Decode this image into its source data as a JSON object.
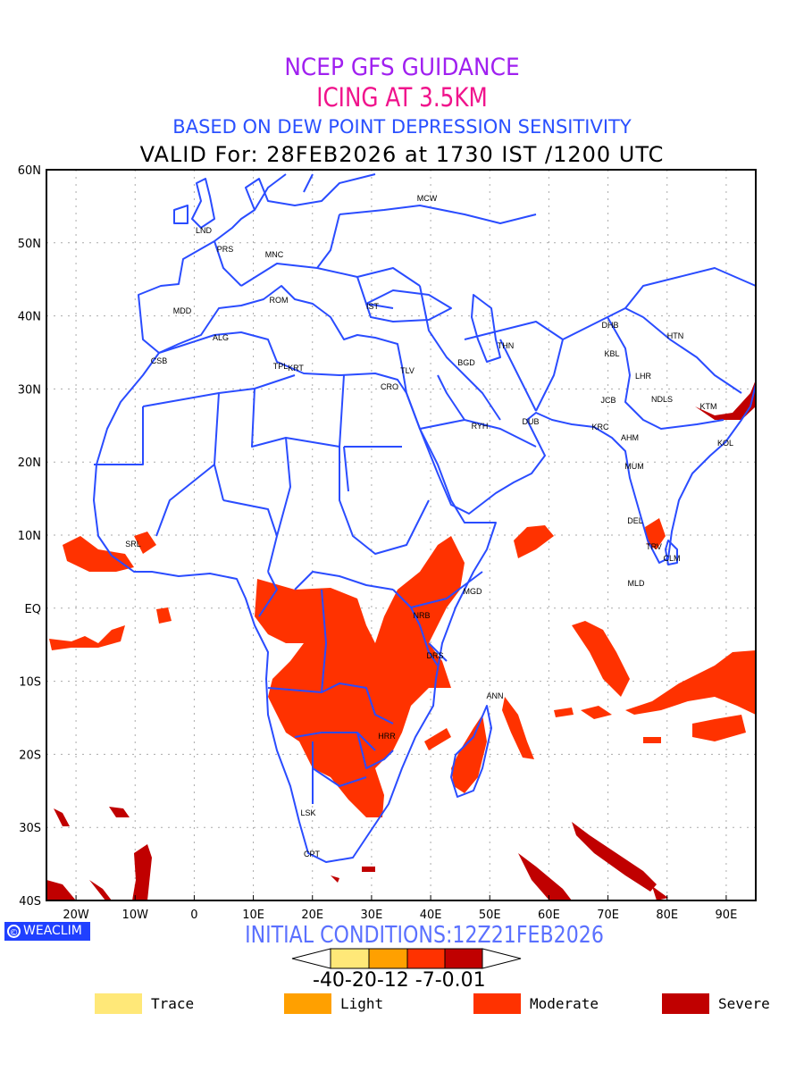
{
  "header": {
    "line1": "NCEP GFS GUIDANCE",
    "line2": "ICING AT 3.5KM",
    "line3": "BASED ON DEW POINT DEPRESSION SENSITIVITY",
    "line4": "VALID For: 28FEB2026 at 1730 IST /1200 UTC"
  },
  "map": {
    "lon_range": [
      -25,
      95
    ],
    "lat_range": [
      -40,
      60
    ],
    "lon_ticks": [
      {
        "v": -20,
        "label": "20W"
      },
      {
        "v": -10,
        "label": "10W"
      },
      {
        "v": 0,
        "label": "0"
      },
      {
        "v": 10,
        "label": "10E"
      },
      {
        "v": 20,
        "label": "20E"
      },
      {
        "v": 30,
        "label": "30E"
      },
      {
        "v": 40,
        "label": "40E"
      },
      {
        "v": 50,
        "label": "50E"
      },
      {
        "v": 60,
        "label": "60E"
      },
      {
        "v": 70,
        "label": "70E"
      },
      {
        "v": 80,
        "label": "80E"
      },
      {
        "v": 90,
        "label": "90E"
      }
    ],
    "lat_ticks": [
      {
        "v": 60,
        "label": "60N"
      },
      {
        "v": 50,
        "label": "50N"
      },
      {
        "v": 40,
        "label": "40N"
      },
      {
        "v": 30,
        "label": "30N"
      },
      {
        "v": 20,
        "label": "20N"
      },
      {
        "v": 10,
        "label": "10N"
      },
      {
        "v": 0,
        "label": "EQ"
      },
      {
        "v": -10,
        "label": "10S"
      },
      {
        "v": -20,
        "label": "20S"
      },
      {
        "v": -30,
        "label": "30S"
      },
      {
        "v": -40,
        "label": "40S"
      }
    ],
    "stations": [
      "MCW",
      "LND",
      "PRS",
      "MNC",
      "ROM",
      "MDD",
      "IST",
      "ALG",
      "CSB",
      "TPL",
      "KRT",
      "TLV",
      "CRO",
      "BGD",
      "THN",
      "DHB",
      "HTN",
      "KBL",
      "LHR",
      "JCB",
      "NDLS",
      "KTM",
      "RYH",
      "DUB",
      "KRC",
      "AHM",
      "KOL",
      "MUM",
      "DEL",
      "TRV",
      "CLM",
      "MLD",
      "SRL",
      "MGD",
      "NRB",
      "DRS",
      "ANN",
      "HRR",
      "LSK",
      "CPT"
    ],
    "coast_color": "#2a4cff"
  },
  "logo": {
    "symbol": "©",
    "text": "WEACLIM"
  },
  "footer": {
    "initial_conditions": "INITIAL CONDITIONS:12Z21FEB2026"
  },
  "colorbar": {
    "colors": [
      "#ffe878",
      "#ffa000",
      "#ff3200",
      "#c00000"
    ],
    "tick_labels": "-40-20-12 -7-0.01"
  },
  "legend": [
    {
      "label": "Trace",
      "color": "#ffe878"
    },
    {
      "label": "Light",
      "color": "#ffa000"
    },
    {
      "label": "Moderate",
      "color": "#ff3200"
    },
    {
      "label": "Severe",
      "color": "#c00000"
    }
  ]
}
